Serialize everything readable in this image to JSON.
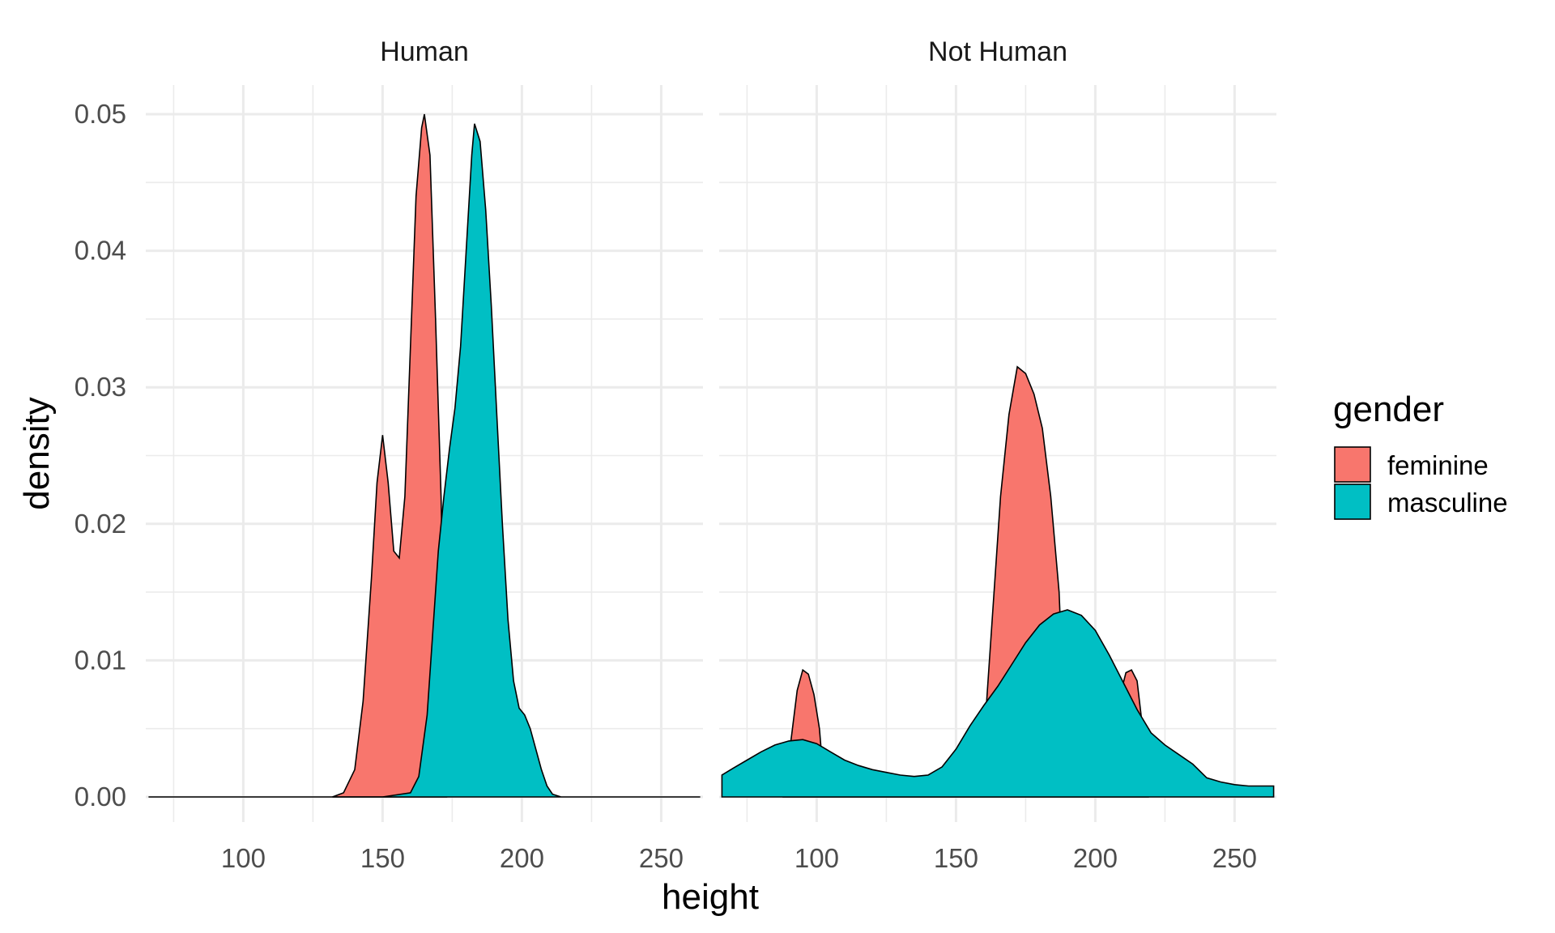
{
  "chart_data": {
    "type": "area",
    "subtype": "faceted density",
    "xlabel": "height",
    "ylabel": "density",
    "xlim": [
      65,
      265
    ],
    "ylim": [
      0,
      0.05
    ],
    "x_ticks": [
      100,
      150,
      200,
      250
    ],
    "y_ticks": [
      0.0,
      0.01,
      0.02,
      0.03,
      0.04,
      0.05
    ],
    "y_tick_labels": [
      "0.00",
      "0.01",
      "0.02",
      "0.03",
      "0.04",
      "0.05"
    ],
    "grid": true,
    "legend": {
      "title": "gender",
      "placement": "right",
      "entries": [
        {
          "label": "feminine",
          "color": "#F8766D"
        },
        {
          "label": "masculine",
          "color": "#00BFC4"
        }
      ]
    },
    "facets": [
      {
        "title": "Human",
        "series": [
          {
            "name": "feminine",
            "color": "#F8766D",
            "x": [
              132,
              136,
              140,
              143,
              146,
              148,
              150,
              152,
              154,
              156,
              158,
              160,
              162,
              164,
              165,
              167,
              169,
              171,
              173
            ],
            "y": [
              0.0,
              0.0003,
              0.002,
              0.007,
              0.016,
              0.023,
              0.0265,
              0.023,
              0.018,
              0.0175,
              0.022,
              0.033,
              0.044,
              0.049,
              0.05,
              0.047,
              0.035,
              0.022,
              0.0
            ]
          },
          {
            "name": "masculine",
            "color": "#00BFC4",
            "x": [
              66,
              100,
              150,
              160,
              163,
              166,
              168,
              170,
              172,
              174,
              176,
              178,
              180,
              182,
              183,
              185,
              187,
              189,
              191,
              193,
              195,
              197,
              199,
              201,
              203,
              205,
              207,
              209,
              211,
              214,
              218,
              230,
              264
            ],
            "y": [
              0.0,
              0.0,
              0.0,
              0.0003,
              0.0015,
              0.006,
              0.012,
              0.018,
              0.022,
              0.0255,
              0.0285,
              0.033,
              0.04,
              0.047,
              0.0493,
              0.048,
              0.043,
              0.036,
              0.028,
              0.02,
              0.013,
              0.0085,
              0.0065,
              0.006,
              0.005,
              0.0035,
              0.002,
              0.0008,
              0.0002,
              0.0,
              0.0,
              0.0,
              0.0
            ]
          }
        ]
      },
      {
        "title": "Not Human",
        "series": [
          {
            "name": "feminine",
            "color": "#F8766D",
            "x": [
              88,
              91,
              93,
              95,
              97,
              99,
              101,
              103,
              158,
              160,
              163,
              166,
              169,
              172,
              175,
              178,
              181,
              184,
              187,
              190,
              207,
              209,
              211,
              213,
              215,
              217,
              219
            ],
            "y": [
              0.0,
              0.0045,
              0.0078,
              0.0093,
              0.009,
              0.0075,
              0.005,
              0.0,
              0.0,
              0.004,
              0.013,
              0.022,
              0.028,
              0.0315,
              0.031,
              0.0295,
              0.027,
              0.022,
              0.015,
              0.0,
              0.0,
              0.0075,
              0.0091,
              0.0093,
              0.0085,
              0.005,
              0.0
            ]
          },
          {
            "name": "masculine",
            "color": "#00BFC4",
            "x": [
              66,
              70,
              75,
              80,
              85,
              90,
              95,
              100,
              105,
              110,
              115,
              120,
              125,
              130,
              135,
              140,
              145,
              150,
              155,
              160,
              165,
              170,
              175,
              180,
              185,
              190,
              195,
              200,
              205,
              210,
              215,
              220,
              225,
              230,
              235,
              240,
              245,
              250,
              255,
              260,
              264
            ],
            "y": [
              0.0016,
              0.0021,
              0.0027,
              0.0033,
              0.0038,
              0.0041,
              0.0042,
              0.0039,
              0.0033,
              0.0027,
              0.0023,
              0.002,
              0.0018,
              0.0016,
              0.0015,
              0.0016,
              0.0022,
              0.0035,
              0.0052,
              0.0067,
              0.0081,
              0.0097,
              0.0113,
              0.0126,
              0.0134,
              0.0137,
              0.0133,
              0.0122,
              0.0104,
              0.0084,
              0.0064,
              0.0047,
              0.0038,
              0.0031,
              0.0024,
              0.0014,
              0.0011,
              0.0009,
              0.0008,
              0.0008,
              0.0008
            ]
          }
        ]
      }
    ]
  }
}
